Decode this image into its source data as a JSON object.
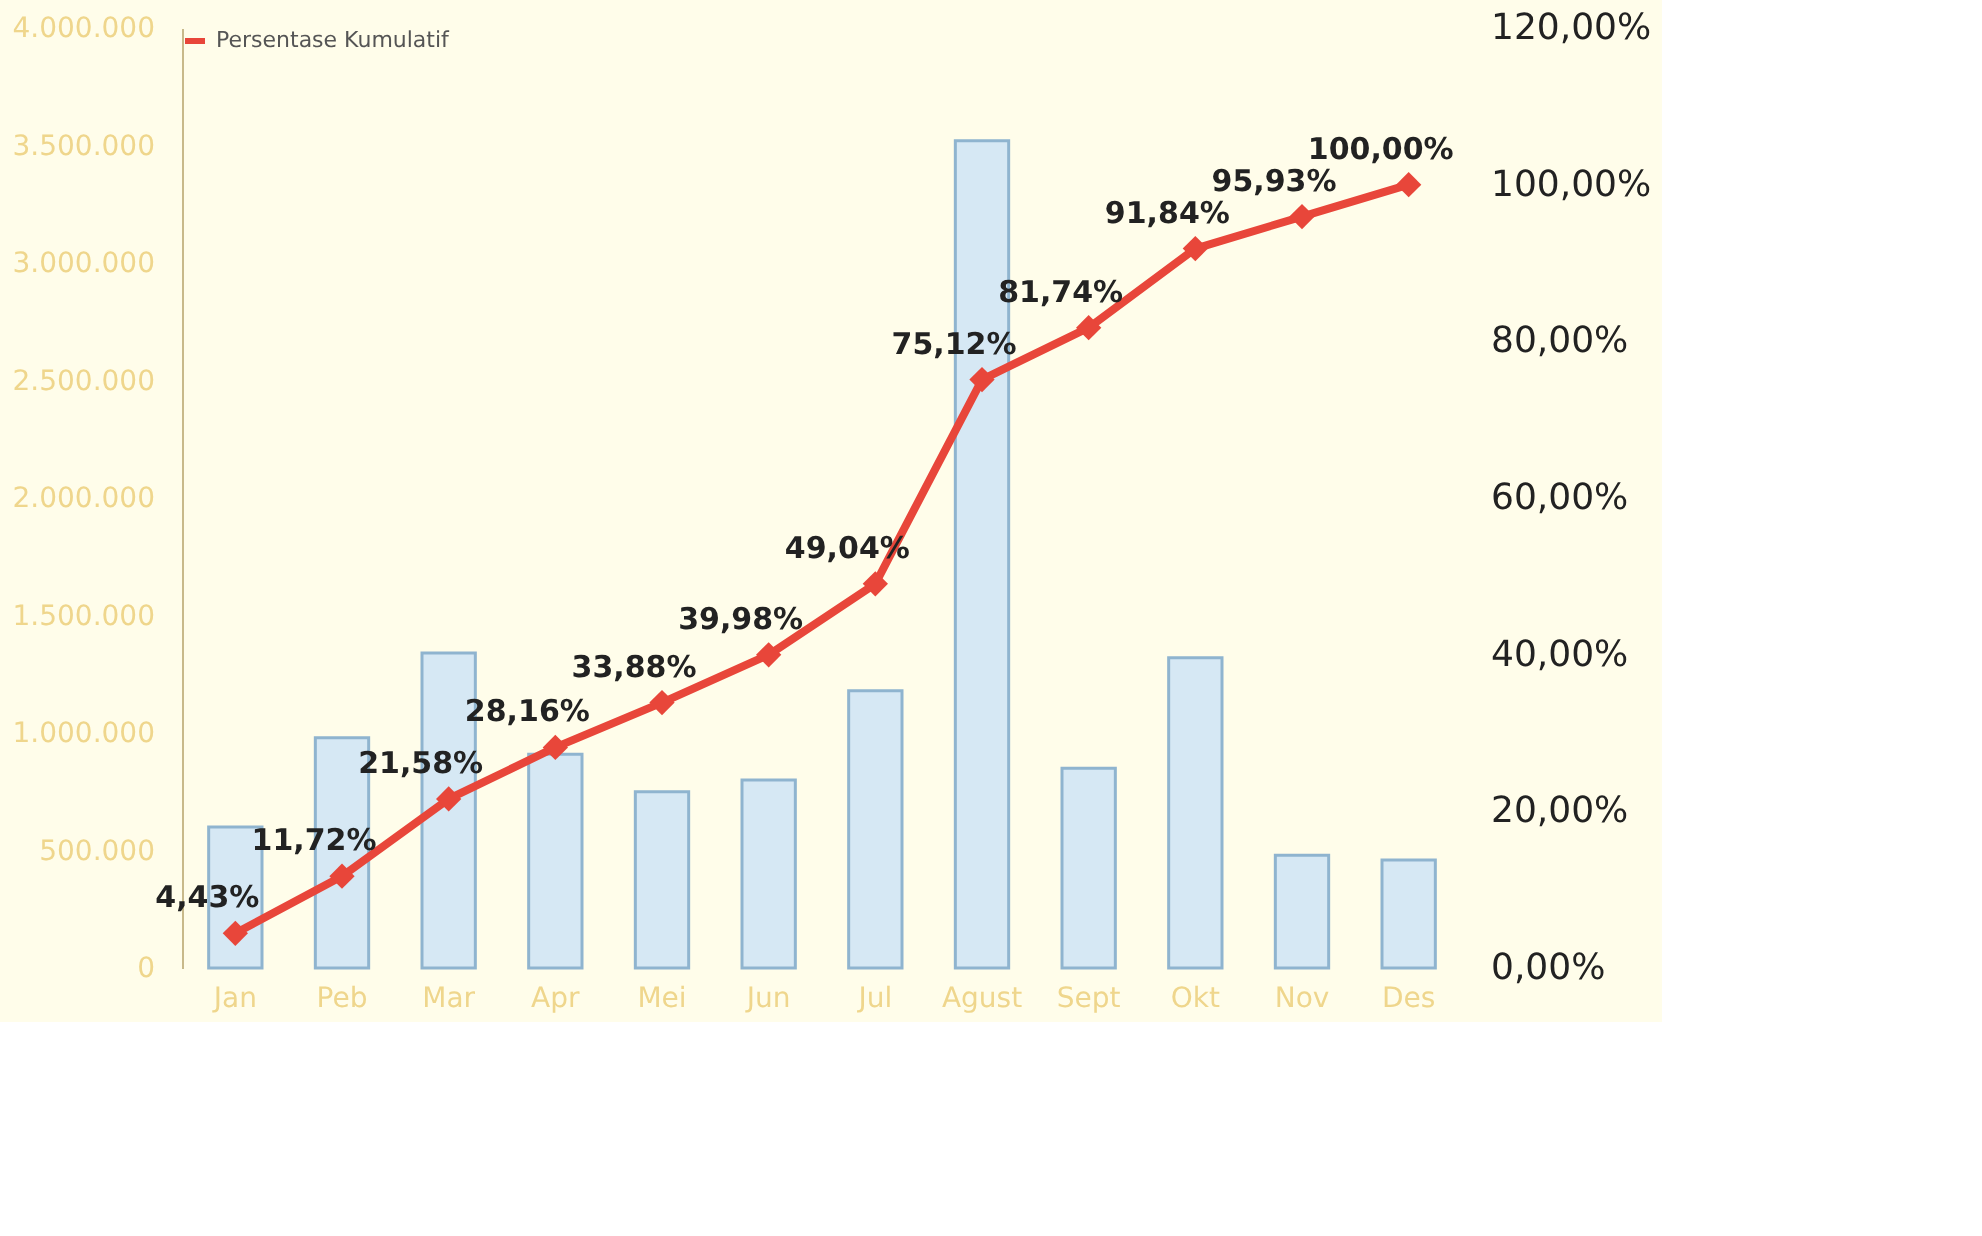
{
  "chart_data": {
    "type": "bar",
    "categories": [
      "Jan",
      "Peb",
      "Mar",
      "Apr",
      "Mei",
      "Jun",
      "Jul",
      "Agust",
      "Sept",
      "Okt",
      "Nov",
      "Des"
    ],
    "series": [
      {
        "color": "#d6e8f4",
        "values": [
          600000,
          980000,
          1340000,
          910000,
          750000,
          800000,
          1180000,
          3520000,
          850000,
          1320000,
          480000,
          460000
        ]
      },
      {
        "type": "line",
        "name": "Persentase Kumulatif",
        "color": "#e8463a",
        "axis": "y2",
        "marker": "diamond",
        "line_style": "solid",
        "values": [
          4.43,
          11.72,
          21.58,
          28.16,
          33.88,
          39.98,
          49.04,
          75.12,
          81.74,
          91.84,
          95.93,
          100.0
        ],
        "value_labels": [
          "4,43%",
          "11,72%",
          "21,58%",
          "28,16%",
          "33,88%",
          "39,98%",
          "49,04%",
          "75,12%",
          "81,74%",
          "91,84%",
          "95,93%",
          "100,00%"
        ]
      }
    ],
    "ylim": [
      0,
      4000000
    ],
    "yticks": [
      {
        "value": 0,
        "label": "0"
      },
      {
        "value": 500000,
        "label": "500.000"
      },
      {
        "value": 1000000,
        "label": "1.000.000"
      },
      {
        "value": 1500000,
        "label": "1.500.000"
      },
      {
        "value": 2000000,
        "label": "2.000.000"
      },
      {
        "value": 2500000,
        "label": "2.500.000"
      },
      {
        "value": 3000000,
        "label": "3.000.000"
      },
      {
        "value": 3500000,
        "label": "3.500.000"
      },
      {
        "value": 4000000,
        "label": "4.000.000"
      }
    ],
    "y2lim": [
      0,
      120
    ],
    "y2ticks": [
      {
        "value": 0,
        "label": "0,00%"
      },
      {
        "value": 20,
        "label": "20,00%"
      },
      {
        "value": 40,
        "label": "40,00%"
      },
      {
        "value": 60,
        "label": "60,00%"
      },
      {
        "value": 80,
        "label": "80,00%"
      },
      {
        "value": 100,
        "label": "100,00%"
      },
      {
        "value": 120,
        "label": "120,00%"
      }
    ],
    "grid": false,
    "legend": "top left"
  }
}
